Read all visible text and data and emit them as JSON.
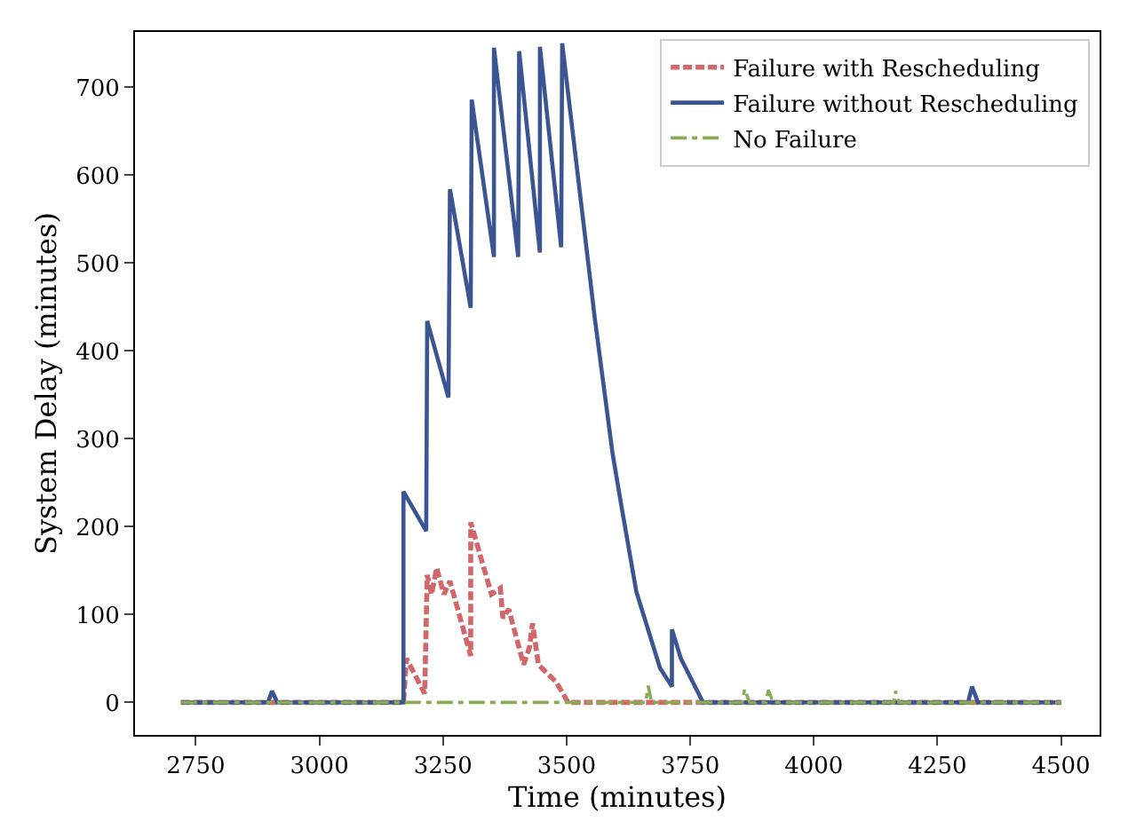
{
  "chart_data": {
    "type": "line",
    "xlabel": "Time (minutes)",
    "ylabel": "System Delay (minutes)",
    "xlim": [
      2627,
      4578
    ],
    "ylim": [
      -37,
      763
    ],
    "xticks": [
      2750,
      3000,
      3250,
      3500,
      3750,
      4000,
      4250,
      4500
    ],
    "yticks": [
      0,
      100,
      200,
      300,
      400,
      500,
      600,
      700
    ],
    "legend": "top right",
    "marker": "none",
    "series": [
      {
        "name": "Failure with Rescheduling",
        "color": "#d1676b",
        "line_style": "dashed",
        "x": [
          2720,
          3170,
          3176,
          3213,
          3218,
          3227,
          3237,
          3252,
          3264,
          3306,
          3306,
          3348,
          3366,
          3371,
          3383,
          3413,
          3425,
          3431,
          3443,
          3479,
          3503,
          4500
        ],
        "values": [
          0,
          0,
          50,
          10,
          145,
          123,
          153,
          123,
          138,
          53,
          205,
          123,
          130,
          96,
          106,
          43,
          63,
          90,
          43,
          23,
          0,
          0
        ]
      },
      {
        "name": "Failure without Rescheduling",
        "color": "#3b5592",
        "line_style": "solid",
        "x": [
          2720,
          2896,
          2904,
          2915,
          3170,
          3170,
          3216,
          3218,
          3261,
          3264,
          3306,
          3308,
          3353,
          3353,
          3402,
          3404,
          3446,
          3446,
          3489,
          3491,
          3557,
          3593,
          3611,
          3641,
          3689,
          3713,
          3713,
          3731,
          3776,
          4312,
          4320,
          4332,
          4500
        ],
        "values": [
          0,
          0,
          13,
          0,
          0,
          240,
          195,
          434,
          347,
          584,
          449,
          686,
          507,
          745,
          507,
          741,
          512,
          746,
          518,
          750,
          437,
          283,
          223,
          126,
          39,
          18,
          83,
          50,
          0,
          0,
          18,
          0,
          0
        ]
      },
      {
        "name": "No Failure",
        "color": "#8aab55",
        "line_style": "dashdot",
        "x": [
          2720,
          3660,
          3665,
          3672,
          3855,
          3860,
          3870,
          3903,
          3908,
          3918,
          4162,
          4165,
          4172,
          4500
        ],
        "values": [
          0,
          0,
          19,
          0,
          0,
          15,
          0,
          0,
          14,
          0,
          0,
          13,
          0,
          0
        ]
      }
    ]
  }
}
